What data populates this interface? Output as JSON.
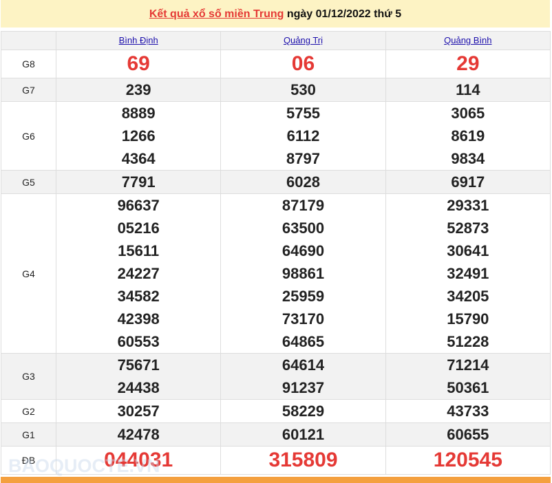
{
  "header": {
    "link_text": "Kết quả xổ số miền Trung",
    "rest": " ngày 01/12/2022 thứ 5"
  },
  "provinces": [
    "Bình Định",
    "Quảng Trị",
    "Quảng Bình"
  ],
  "rows": [
    {
      "label": "G8",
      "values": [
        [
          "69"
        ],
        [
          "06"
        ],
        [
          "29"
        ]
      ]
    },
    {
      "label": "G7",
      "values": [
        [
          "239"
        ],
        [
          "530"
        ],
        [
          "114"
        ]
      ]
    },
    {
      "label": "G6",
      "values": [
        [
          "8889",
          "1266",
          "4364"
        ],
        [
          "5755",
          "6112",
          "8797"
        ],
        [
          "3065",
          "8619",
          "9834"
        ]
      ]
    },
    {
      "label": "G5",
      "values": [
        [
          "7791"
        ],
        [
          "6028"
        ],
        [
          "6917"
        ]
      ]
    },
    {
      "label": "G4",
      "values": [
        [
          "96637",
          "05216",
          "15611",
          "24227",
          "34582",
          "42398",
          "60553"
        ],
        [
          "87179",
          "63500",
          "64690",
          "98861",
          "25959",
          "73170",
          "64865"
        ],
        [
          "29331",
          "52873",
          "30641",
          "32491",
          "34205",
          "15790",
          "51228"
        ]
      ]
    },
    {
      "label": "G3",
      "values": [
        [
          "75671",
          "24438"
        ],
        [
          "64614",
          "91237"
        ],
        [
          "71214",
          "50361"
        ]
      ]
    },
    {
      "label": "G2",
      "values": [
        [
          "30257"
        ],
        [
          "58229"
        ],
        [
          "43733"
        ]
      ]
    },
    {
      "label": "G1",
      "values": [
        [
          "42478"
        ],
        [
          "60121"
        ],
        [
          "60655"
        ]
      ]
    },
    {
      "label": "ĐB",
      "values": [
        [
          "044031"
        ],
        [
          "315809"
        ],
        [
          "120545"
        ]
      ]
    }
  ],
  "watermark": "BAOQUOCTE.VN",
  "colors": {
    "accent_red": "#e53935",
    "title_bg": "#fdf3c4",
    "footer_bar": "#f4a03f"
  }
}
